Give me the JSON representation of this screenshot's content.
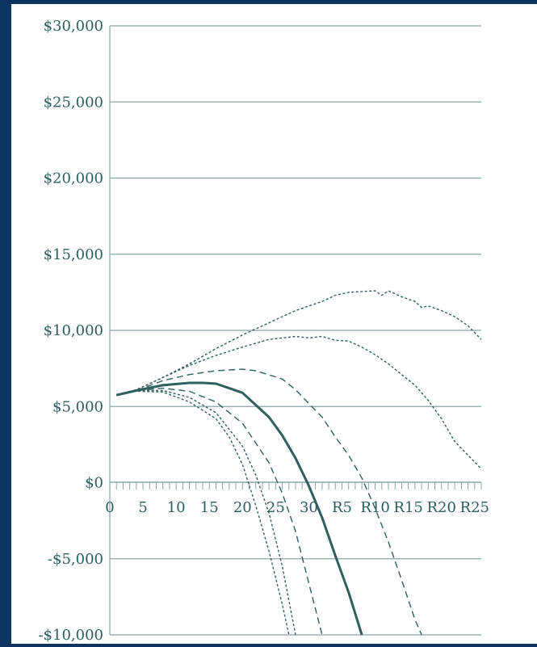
{
  "chart_data": {
    "type": "line",
    "title": "",
    "xlabel": "",
    "ylabel": "",
    "x_ticks": [
      "0",
      "5",
      "10",
      "15",
      "20",
      "25",
      "30",
      "R5",
      "R10",
      "R15",
      "R20",
      "R25"
    ],
    "x_count": 56,
    "y_ticks": [
      {
        "value": 30000,
        "label": "$30,000"
      },
      {
        "value": 25000,
        "label": "$25,000"
      },
      {
        "value": 20000,
        "label": "$20,000"
      },
      {
        "value": 15000,
        "label": "$15,000"
      },
      {
        "value": 10000,
        "label": "$10,000"
      },
      {
        "value": 5000,
        "label": "$5,000"
      },
      {
        "value": 0,
        "label": "$0"
      },
      {
        "value": -5000,
        "label": "-$5,000"
      },
      {
        "value": -10000,
        "label": "-$10,000"
      }
    ],
    "ylim": [
      -10000,
      30000
    ],
    "grid": true,
    "series": [
      {
        "style": "dotted",
        "points": [
          [
            1,
            5750
          ],
          [
            4,
            6000
          ],
          [
            8,
            5950
          ],
          [
            12,
            5300
          ],
          [
            16,
            4200
          ],
          [
            18,
            3000
          ],
          [
            20,
            1200
          ],
          [
            22,
            -1500
          ],
          [
            24,
            -4500
          ],
          [
            26,
            -8000
          ],
          [
            27,
            -10000
          ]
        ]
      },
      {
        "style": "dotted",
        "points": [
          [
            1,
            5750
          ],
          [
            4,
            6050
          ],
          [
            8,
            6050
          ],
          [
            12,
            5600
          ],
          [
            16,
            4600
          ],
          [
            20,
            2400
          ],
          [
            22,
            500
          ],
          [
            24,
            -2000
          ],
          [
            26,
            -5500
          ],
          [
            28,
            -10000
          ]
        ]
      },
      {
        "style": "dashed",
        "points": [
          [
            1,
            5750
          ],
          [
            4,
            6050
          ],
          [
            8,
            6200
          ],
          [
            12,
            6000
          ],
          [
            16,
            5300
          ],
          [
            20,
            3900
          ],
          [
            24,
            1300
          ],
          [
            26,
            -700
          ],
          [
            28,
            -3200
          ],
          [
            30,
            -6600
          ],
          [
            32,
            -10000
          ]
        ]
      },
      {
        "style": "solid",
        "points": [
          [
            1,
            5750
          ],
          [
            4,
            6050
          ],
          [
            8,
            6400
          ],
          [
            12,
            6550
          ],
          [
            14,
            6550
          ],
          [
            16,
            6500
          ],
          [
            18,
            6200
          ],
          [
            20,
            5900
          ],
          [
            22,
            5100
          ],
          [
            24,
            4300
          ],
          [
            26,
            3100
          ],
          [
            28,
            1600
          ],
          [
            30,
            -200
          ],
          [
            32,
            -2300
          ],
          [
            34,
            -4800
          ],
          [
            36,
            -7200
          ],
          [
            38,
            -10000
          ]
        ]
      },
      {
        "style": "dashed",
        "points": [
          [
            1,
            5750
          ],
          [
            4,
            6050
          ],
          [
            8,
            6700
          ],
          [
            12,
            7100
          ],
          [
            16,
            7350
          ],
          [
            20,
            7450
          ],
          [
            22,
            7350
          ],
          [
            26,
            6800
          ],
          [
            28,
            6100
          ],
          [
            30,
            5200
          ],
          [
            32,
            4300
          ],
          [
            34,
            3000
          ],
          [
            36,
            1800
          ],
          [
            38,
            300
          ],
          [
            40,
            -1700
          ],
          [
            42,
            -3900
          ],
          [
            44,
            -6400
          ],
          [
            46,
            -9000
          ],
          [
            47,
            -10000
          ]
        ]
      },
      {
        "style": "dotted",
        "points": [
          [
            1,
            5750
          ],
          [
            4,
            6100
          ],
          [
            8,
            6900
          ],
          [
            12,
            7700
          ],
          [
            16,
            8350
          ],
          [
            20,
            8900
          ],
          [
            24,
            9400
          ],
          [
            28,
            9600
          ],
          [
            30,
            9500
          ],
          [
            32,
            9600
          ],
          [
            34,
            9350
          ],
          [
            36,
            9300
          ],
          [
            38,
            8900
          ],
          [
            40,
            8400
          ],
          [
            42,
            7800
          ],
          [
            44,
            7100
          ],
          [
            46,
            6400
          ],
          [
            48,
            5400
          ],
          [
            50,
            4200
          ],
          [
            52,
            2700
          ],
          [
            54,
            1800
          ],
          [
            56,
            900
          ]
        ]
      },
      {
        "style": "dotted",
        "points": [
          [
            1,
            5750
          ],
          [
            4,
            6100
          ],
          [
            8,
            6900
          ],
          [
            12,
            7800
          ],
          [
            16,
            8800
          ],
          [
            20,
            9700
          ],
          [
            24,
            10500
          ],
          [
            28,
            11300
          ],
          [
            32,
            11900
          ],
          [
            34,
            12300
          ],
          [
            36,
            12500
          ],
          [
            38,
            12550
          ],
          [
            40,
            12600
          ],
          [
            41,
            12300
          ],
          [
            42,
            12600
          ],
          [
            44,
            12200
          ],
          [
            46,
            11900
          ],
          [
            47,
            11500
          ],
          [
            48,
            11600
          ],
          [
            50,
            11300
          ],
          [
            52,
            10900
          ],
          [
            54,
            10300
          ],
          [
            56,
            9400
          ]
        ]
      }
    ]
  }
}
